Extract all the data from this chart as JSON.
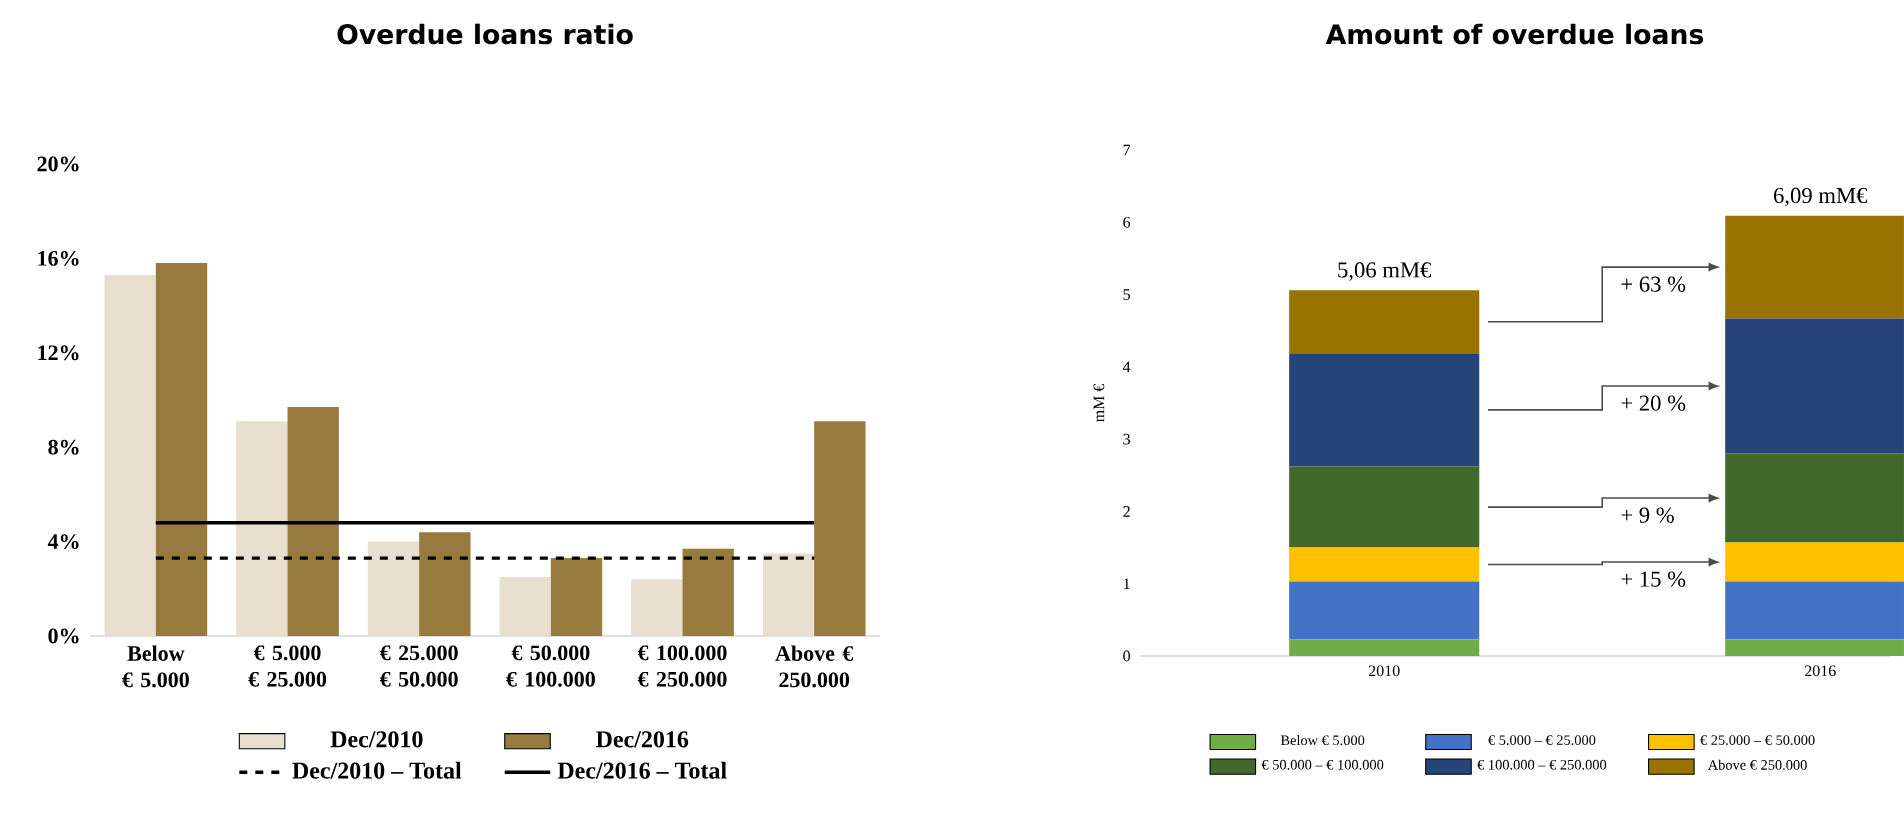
{
  "chart_data": [
    {
      "type": "bar",
      "title": "Overdue loans ratio",
      "categories": [
        "Below € 5.000",
        "€ 5.000 € 25.000",
        "€ 25.000 € 50.000",
        "€ 50.000 € 100.000",
        "€ 100.000 € 250.000",
        "Above € 250.000"
      ],
      "series": [
        {
          "name": "Dec/2010",
          "color": "#e8dfcf",
          "values": [
            15.3,
            9.1,
            4.0,
            2.5,
            2.4,
            3.5
          ]
        },
        {
          "name": "Dec/2016",
          "color": "#967a3e",
          "values": [
            15.8,
            9.7,
            4.4,
            3.3,
            3.7,
            9.1
          ]
        }
      ],
      "ylim": [
        0,
        20
      ],
      "yticks": [
        {
          "value": 0,
          "label": "0%"
        },
        {
          "value": 4,
          "label": "4%"
        },
        {
          "value": 8,
          "label": "8%"
        },
        {
          "value": 12,
          "label": "12%"
        },
        {
          "value": 16,
          "label": "16%"
        },
        {
          "value": 20,
          "label": "20%"
        }
      ],
      "ref_lines": [
        {
          "axis": "y",
          "value": 3.3,
          "label": "Dec/2010 – Total",
          "color": "#000000",
          "line_style": "dashed"
        },
        {
          "axis": "y",
          "value": 4.8,
          "label": "Dec/2016 – Total",
          "color": "#000000",
          "line_style": "solid"
        }
      ],
      "legend": "bottom"
    },
    {
      "type": "bar",
      "title": "Amount of overdue loans",
      "ylabel": "mM €",
      "stacked": true,
      "categories": [
        "2010",
        "2016"
      ],
      "series": [
        {
          "name": "Below € 5.000",
          "color": "#70ad47",
          "values": [
            0.23,
            0.23
          ]
        },
        {
          "name": "€ 5.000 – € 25.000",
          "color": "#4472c4",
          "values": [
            0.8,
            0.8
          ]
        },
        {
          "name": "€ 25.000 – € 50.000",
          "color": "#ffc000",
          "values": [
            0.47,
            0.54
          ]
        },
        {
          "name": "€ 50.000 – € 100.000",
          "color": "#43682b",
          "values": [
            1.12,
            1.23
          ]
        },
        {
          "name": "€ 100.000 – € 250.000",
          "color": "#264478",
          "values": [
            1.57,
            1.87
          ]
        },
        {
          "name": "Above € 250.000",
          "color": "#997300",
          "values": [
            0.87,
            1.42
          ]
        }
      ],
      "ylim": [
        0,
        7
      ],
      "yticks": [
        0,
        1,
        2,
        3,
        4,
        5,
        6,
        7
      ],
      "totals": [
        "5,06 mM€",
        "6,09 mM€"
      ],
      "annotations": [
        "+ 63 %",
        "+ 20 %",
        "+ 9 %",
        "+ 15 %"
      ],
      "legend": "bottom"
    }
  ]
}
